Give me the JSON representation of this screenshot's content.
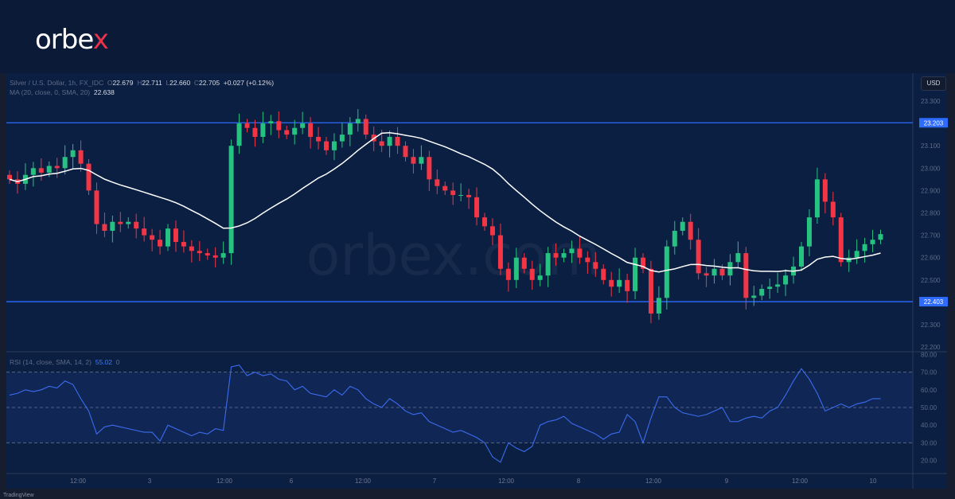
{
  "brand": {
    "logo_text": "orbex",
    "watermark": "orbex.com"
  },
  "legend": {
    "symbol": "Silver / U.S. Dollar, 1h, FX_IDC",
    "open_label": "O",
    "open": "22.679",
    "high_label": "H",
    "high": "22.711",
    "low_label": "L",
    "low": "22.660",
    "close_label": "C",
    "close": "22.705",
    "change": "+0.027 (+0.12%)",
    "ma_label": "MA (20, close, 0, SMA, 20)",
    "ma_value": "22.638",
    "rsi_label": "RSI (14, close, SMA, 14, 2)",
    "rsi_value": "55.02",
    "rsi_extra": "0"
  },
  "currency": "USD",
  "footer": "TradingView",
  "colors": {
    "up": "#26c281",
    "down": "#f23645",
    "ma": "#ffffff",
    "level": "#2e6bff",
    "rsi": "#3b6cf0",
    "bg": "#0b1f42"
  },
  "chart_data": [
    {
      "type": "candlestick",
      "ylim": [
        22.2,
        23.35
      ],
      "y_ticks": [
        "23.300",
        "23.100",
        "23.000",
        "22.900",
        "22.800",
        "22.700",
        "22.600",
        "22.500",
        "22.300",
        "22.200"
      ],
      "levels": [
        {
          "value": 23.203,
          "label": "23.203"
        },
        {
          "value": 22.403,
          "label": "22.403"
        }
      ],
      "x_ticks": [
        "12:00",
        "3",
        "12:00",
        "6",
        "12:00",
        "7",
        "12:00",
        "8",
        "12:00",
        "9",
        "12:00",
        "10"
      ],
      "ma_period": 20,
      "close": [
        22.95,
        22.93,
        22.97,
        23.0,
        22.98,
        23.01,
        23.0,
        23.05,
        23.08,
        23.02,
        22.9,
        22.75,
        22.72,
        22.76,
        22.75,
        22.76,
        22.73,
        22.7,
        22.68,
        22.65,
        22.73,
        22.67,
        22.65,
        22.63,
        22.62,
        22.61,
        22.6,
        22.62,
        23.1,
        23.2,
        23.18,
        23.14,
        23.2,
        23.21,
        23.17,
        23.15,
        23.18,
        23.2,
        23.14,
        23.12,
        23.08,
        23.12,
        23.15,
        23.2,
        23.22,
        23.15,
        23.12,
        23.1,
        23.14,
        23.1,
        23.05,
        23.02,
        23.05,
        22.95,
        22.92,
        22.9,
        22.88,
        22.88,
        22.87,
        22.78,
        22.74,
        22.7,
        22.55,
        22.5,
        22.6,
        22.55,
        22.5,
        22.52,
        22.62,
        22.6,
        22.62,
        22.64,
        22.6,
        22.58,
        22.55,
        22.5,
        22.47,
        22.5,
        22.45,
        22.6,
        22.55,
        22.35,
        22.42,
        22.65,
        22.72,
        22.76,
        22.68,
        22.53,
        22.52,
        22.55,
        22.52,
        22.58,
        22.62,
        22.42,
        22.43,
        22.46,
        22.47,
        22.48,
        22.52,
        22.56,
        22.65,
        22.78,
        22.95,
        22.85,
        22.78,
        22.58,
        22.6,
        22.63,
        22.66,
        22.68,
        22.705
      ]
    },
    {
      "type": "line",
      "name": "RSI",
      "ylim": [
        15,
        82
      ],
      "y_ticks": [
        "80.00",
        "70.00",
        "60.00",
        "50.00",
        "40.00",
        "30.00",
        "20.00"
      ],
      "bands": [
        70,
        50,
        30
      ],
      "values": [
        57,
        58,
        60,
        59,
        60,
        62,
        61,
        65,
        63,
        55,
        48,
        35,
        39,
        40,
        39,
        38,
        37,
        36,
        36,
        31,
        40,
        38,
        36,
        34,
        36,
        35,
        38,
        37,
        73,
        74,
        68,
        70,
        68,
        69,
        66,
        65,
        60,
        62,
        58,
        57,
        56,
        60,
        57,
        62,
        60,
        55,
        52,
        50,
        55,
        52,
        48,
        46,
        47,
        42,
        40,
        38,
        36,
        37,
        35,
        33,
        30,
        22,
        19,
        30,
        27,
        25,
        28,
        40,
        42,
        43,
        45,
        41,
        39,
        37,
        35,
        32,
        35,
        36,
        46,
        42,
        30,
        44,
        56,
        56,
        50,
        47,
        46,
        45,
        46,
        48,
        50,
        42,
        42,
        44,
        45,
        44,
        48,
        50,
        57,
        65,
        72,
        66,
        58,
        48,
        50,
        52,
        50,
        52,
        53,
        55,
        55
      ]
    }
  ]
}
